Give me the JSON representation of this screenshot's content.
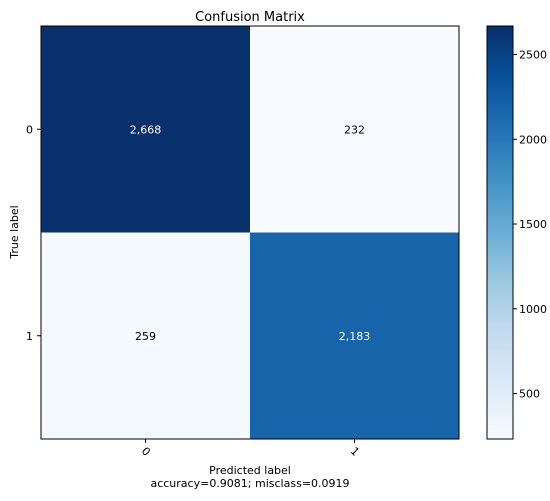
{
  "chart_data": {
    "type": "heatmap",
    "title": "Confusion Matrix",
    "xlabel": "Predicted label",
    "ylabel": "True label",
    "subtitle": "accuracy=0.9081; misclass=0.0919",
    "x_categories": [
      "0",
      "1"
    ],
    "y_categories": [
      "0",
      "1"
    ],
    "matrix": [
      [
        2668,
        232
      ],
      [
        259,
        2183
      ]
    ],
    "cell_labels": [
      [
        "2,668",
        "232"
      ],
      [
        "259",
        "2,183"
      ]
    ],
    "colormap": "Blues",
    "colorbar": {
      "range": [
        232,
        2668
      ],
      "ticks": [
        500,
        1000,
        1500,
        2000,
        2500
      ],
      "tick_labels": [
        "500",
        "1000",
        "1500",
        "2000",
        "2500"
      ]
    }
  }
}
